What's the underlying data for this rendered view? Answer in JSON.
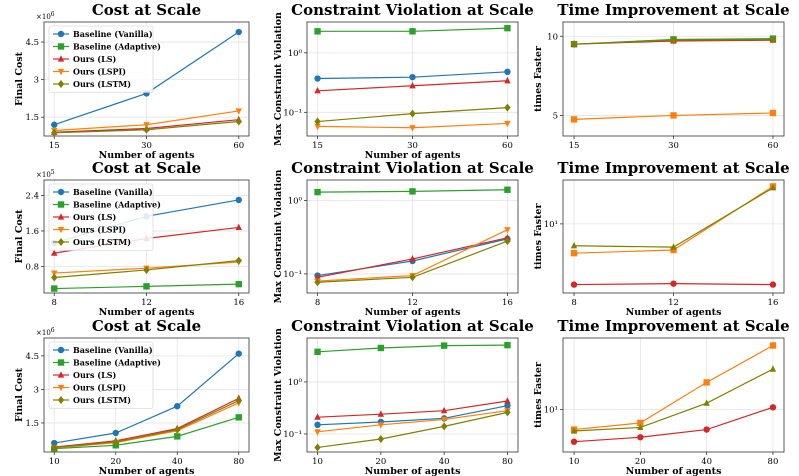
{
  "chart_data": [
    {
      "type": "line",
      "title": "Cost at Scale",
      "xlabel": "Number of agents",
      "ylabel": "Final Cost",
      "yscale": "linear",
      "yexponent": "×10",
      "yexponent_power": "6",
      "x": [
        15,
        30,
        60
      ],
      "xticks": [
        "15",
        "30",
        "60"
      ],
      "ylim": [
        0.75,
        5.3
      ],
      "yticks": [
        1.5,
        3,
        4.5
      ],
      "yticklabels": [
        "1.5",
        "3",
        "4.5"
      ],
      "legend": "upper-left",
      "series": [
        {
          "name": "Baseline (Vanilla)",
          "color": "#1f77b4",
          "marker": "circle",
          "values": [
            1.2,
            2.45,
            4.9
          ]
        },
        {
          "name": "Baseline (Adaptive)",
          "color": "#2ca02c",
          "marker": "square",
          "values": [
            null,
            null,
            null
          ]
        },
        {
          "name": "Ours (LS)",
          "color": "#d62728",
          "marker": "triangle-up",
          "values": [
            0.9,
            1.05,
            1.4
          ]
        },
        {
          "name": "Ours (LSPI)",
          "color": "#ff7f0e",
          "marker": "triangle-down",
          "values": [
            0.97,
            1.2,
            1.75
          ]
        },
        {
          "name": "Ours (LSTM)",
          "color": "#808000",
          "marker": "diamond",
          "values": [
            0.88,
            1.0,
            1.33
          ]
        }
      ]
    },
    {
      "type": "line",
      "title": "Constraint Violation at Scale",
      "xlabel": "Number of agents",
      "ylabel": "Max Constraint Violation",
      "yscale": "log",
      "x": [
        15,
        30,
        60
      ],
      "xticks": [
        "15",
        "30",
        "60"
      ],
      "ylim": [
        0.04,
        3.3
      ],
      "yticks": [
        0.1,
        1
      ],
      "yticklabels": [
        "10⁻¹",
        "10⁰"
      ],
      "series": [
        {
          "name": "Baseline (Vanilla)",
          "color": "#1f77b4",
          "marker": "circle",
          "values": [
            0.37,
            0.39,
            0.48
          ]
        },
        {
          "name": "Baseline (Adaptive)",
          "color": "#2ca02c",
          "marker": "square",
          "values": [
            2.3,
            2.3,
            2.6
          ]
        },
        {
          "name": "Ours (LS)",
          "color": "#d62728",
          "marker": "triangle-up",
          "values": [
            0.23,
            0.28,
            0.34
          ]
        },
        {
          "name": "Ours (LSPI)",
          "color": "#ff7f0e",
          "marker": "triangle-down",
          "values": [
            0.058,
            0.055,
            0.065
          ]
        },
        {
          "name": "Ours (LSTM)",
          "color": "#808000",
          "marker": "diamond",
          "values": [
            0.07,
            0.095,
            0.12
          ]
        }
      ]
    },
    {
      "type": "line",
      "title": "Time Improvement at Scale",
      "xlabel": "",
      "ylabel": "times Faster",
      "yscale": "linear",
      "x": [
        15,
        30,
        60
      ],
      "xticks": [
        "15",
        "30",
        "60"
      ],
      "ylim": [
        3.7,
        10.9
      ],
      "yticks": [
        5,
        10
      ],
      "yticklabels": [
        "5",
        "10"
      ],
      "series": [
        {
          "name": "Baseline (Adaptive)",
          "color": "#2ca02c",
          "marker": "square",
          "values": [
            9.5,
            9.8,
            9.85
          ]
        },
        {
          "name": "Ours (LS)",
          "color": "#d62728",
          "marker": "triangle-up",
          "values": [
            9.5,
            9.7,
            9.75
          ]
        },
        {
          "name": "Ours (LSPI)",
          "color": "#ff7f0e",
          "marker": "square",
          "values": [
            4.75,
            5.0,
            5.15
          ]
        },
        {
          "name": "Ours (LSTM)",
          "color": "#808000",
          "marker": "diamond",
          "values": [
            9.5,
            9.75,
            9.8
          ]
        }
      ]
    },
    {
      "type": "line",
      "title": "Cost at Scale",
      "xlabel": "Number of agents",
      "ylabel": "Final Cost",
      "yscale": "linear",
      "yexponent": "×10",
      "yexponent_power": "5",
      "x": [
        8,
        12,
        16
      ],
      "xticks": [
        "8",
        "12",
        "16"
      ],
      "ylim": [
        0.2,
        2.75
      ],
      "yticks": [
        0.8,
        1.6,
        2.4
      ],
      "yticklabels": [
        "0.8",
        "1.6",
        "2.4"
      ],
      "legend": "upper-left",
      "series": [
        {
          "name": "Baseline (Vanilla)",
          "color": "#1f77b4",
          "marker": "circle",
          "values": [
            1.33,
            1.93,
            2.3
          ]
        },
        {
          "name": "Baseline (Adaptive)",
          "color": "#2ca02c",
          "marker": "square",
          "values": [
            0.3,
            0.35,
            0.4
          ]
        },
        {
          "name": "Ours (LS)",
          "color": "#d62728",
          "marker": "triangle-up",
          "values": [
            1.1,
            1.43,
            1.68
          ]
        },
        {
          "name": "Ours (LSPI)",
          "color": "#ff7f0e",
          "marker": "triangle-down",
          "values": [
            0.65,
            0.76,
            0.9
          ]
        },
        {
          "name": "Ours (LSTM)",
          "color": "#808000",
          "marker": "diamond",
          "values": [
            0.55,
            0.72,
            0.93
          ]
        }
      ]
    },
    {
      "type": "line",
      "title": "Constraint Violation at Scale",
      "xlabel": "Number of agents",
      "ylabel": "Max Constraint Violation",
      "yscale": "log",
      "x": [
        8,
        12,
        16
      ],
      "xticks": [
        "8",
        "12",
        "16"
      ],
      "ylim": [
        0.055,
        1.9
      ],
      "yticks": [
        0.1,
        1
      ],
      "yticklabels": [
        "10⁻¹",
        "10⁰"
      ],
      "series": [
        {
          "name": "Baseline (Vanilla)",
          "color": "#1f77b4",
          "marker": "circle",
          "values": [
            0.095,
            0.15,
            0.3
          ]
        },
        {
          "name": "Baseline (Adaptive)",
          "color": "#2ca02c",
          "marker": "square",
          "values": [
            1.3,
            1.33,
            1.4
          ]
        },
        {
          "name": "Ours (LS)",
          "color": "#d62728",
          "marker": "triangle-up",
          "values": [
            0.09,
            0.16,
            0.31
          ]
        },
        {
          "name": "Ours (LSPI)",
          "color": "#ff7f0e",
          "marker": "triangle-down",
          "values": [
            0.08,
            0.095,
            0.4
          ]
        },
        {
          "name": "Ours (LSTM)",
          "color": "#808000",
          "marker": "diamond",
          "values": [
            0.077,
            0.09,
            0.28
          ]
        }
      ]
    },
    {
      "type": "line",
      "title": "Time Improvement at Scale",
      "xlabel": "Number of agents",
      "ylabel": "times Faster",
      "yscale": "log",
      "x": [
        8,
        12,
        16
      ],
      "xticks": [
        "8",
        "12",
        "16"
      ],
      "ylim": [
        1.6,
        32
      ],
      "yticks": [
        10
      ],
      "yticklabels": [
        "10¹"
      ],
      "series": [
        {
          "name": "Ours (LS)",
          "color": "#d62728",
          "marker": "circle",
          "values": [
            2.0,
            2.05,
            2.0
          ]
        },
        {
          "name": "Ours (LSPI)",
          "color": "#ff7f0e",
          "marker": "square",
          "values": [
            4.6,
            5.0,
            27
          ]
        },
        {
          "name": "Ours (LSTM)",
          "color": "#808000",
          "marker": "triangle-up",
          "values": [
            5.6,
            5.4,
            26
          ]
        }
      ]
    },
    {
      "type": "line",
      "title": "Cost at Scale",
      "xlabel": "Number of agents",
      "ylabel": "Final Cost",
      "yscale": "linear",
      "yexponent": "×10",
      "yexponent_power": "6",
      "x": [
        10,
        20,
        40,
        80
      ],
      "xticks": [
        "10",
        "20",
        "40",
        "80"
      ],
      "ylim": [
        0.2,
        5.3
      ],
      "yticks": [
        1.5,
        3,
        4.5
      ],
      "yticklabels": [
        "1.5",
        "3",
        "4.5"
      ],
      "legend": "upper-left",
      "series": [
        {
          "name": "Baseline (Vanilla)",
          "color": "#1f77b4",
          "marker": "circle",
          "values": [
            0.6,
            1.05,
            2.25,
            4.6
          ]
        },
        {
          "name": "Baseline (Adaptive)",
          "color": "#2ca02c",
          "marker": "square",
          "values": [
            0.35,
            0.5,
            0.9,
            1.75
          ]
        },
        {
          "name": "Ours (LS)",
          "color": "#d62728",
          "marker": "triangle-up",
          "values": [
            0.42,
            0.7,
            1.25,
            2.6
          ]
        },
        {
          "name": "Ours (LSPI)",
          "color": "#ff7f0e",
          "marker": "triangle-down",
          "values": [
            0.38,
            0.62,
            1.15,
            2.4
          ]
        },
        {
          "name": "Ours (LSTM)",
          "color": "#808000",
          "marker": "diamond",
          "values": [
            0.4,
            0.65,
            1.2,
            2.5
          ]
        }
      ]
    },
    {
      "type": "line",
      "title": "Constraint Violation at Scale",
      "xlabel": "Number of agents",
      "ylabel": "Max Constraint Violation",
      "yscale": "log",
      "x": [
        10,
        20,
        40,
        80
      ],
      "xticks": [
        "10",
        "20",
        "40",
        "80"
      ],
      "ylim": [
        0.045,
        7.0
      ],
      "yticks": [
        0.1,
        1
      ],
      "yticklabels": [
        "10⁻¹",
        "10⁰"
      ],
      "series": [
        {
          "name": "Baseline (Vanilla)",
          "color": "#1f77b4",
          "marker": "circle",
          "values": [
            0.15,
            0.17,
            0.2,
            0.35
          ]
        },
        {
          "name": "Baseline (Adaptive)",
          "color": "#2ca02c",
          "marker": "square",
          "values": [
            3.8,
            4.5,
            5.0,
            5.1
          ]
        },
        {
          "name": "Ours (LS)",
          "color": "#d62728",
          "marker": "triangle-up",
          "values": [
            0.21,
            0.24,
            0.28,
            0.43
          ]
        },
        {
          "name": "Ours (LSPI)",
          "color": "#ff7f0e",
          "marker": "triangle-down",
          "values": [
            0.11,
            0.15,
            0.19,
            0.28
          ]
        },
        {
          "name": "Ours (LSTM)",
          "color": "#808000",
          "marker": "diamond",
          "values": [
            0.055,
            0.08,
            0.14,
            0.26
          ]
        }
      ]
    },
    {
      "type": "line",
      "title": "Time Improvement at Scale",
      "xlabel": "Number of agents",
      "ylabel": "times Faster",
      "yscale": "log",
      "x": [
        10,
        20,
        40,
        80
      ],
      "xticks": [
        "10",
        "20",
        "40",
        "80"
      ],
      "ylim": [
        4.0,
        47
      ],
      "yticks": [
        10
      ],
      "yticklabels": [
        "10¹"
      ],
      "series": [
        {
          "name": "Ours (LS)",
          "color": "#d62728",
          "marker": "circle",
          "values": [
            5.0,
            5.5,
            6.5,
            10.5
          ]
        },
        {
          "name": "Ours (LSPI)",
          "color": "#ff7f0e",
          "marker": "square",
          "values": [
            6.5,
            7.5,
            18,
            40
          ]
        },
        {
          "name": "Ours (LSTM)",
          "color": "#808000",
          "marker": "triangle-up",
          "values": [
            6.3,
            6.8,
            11.5,
            24
          ]
        }
      ]
    }
  ]
}
